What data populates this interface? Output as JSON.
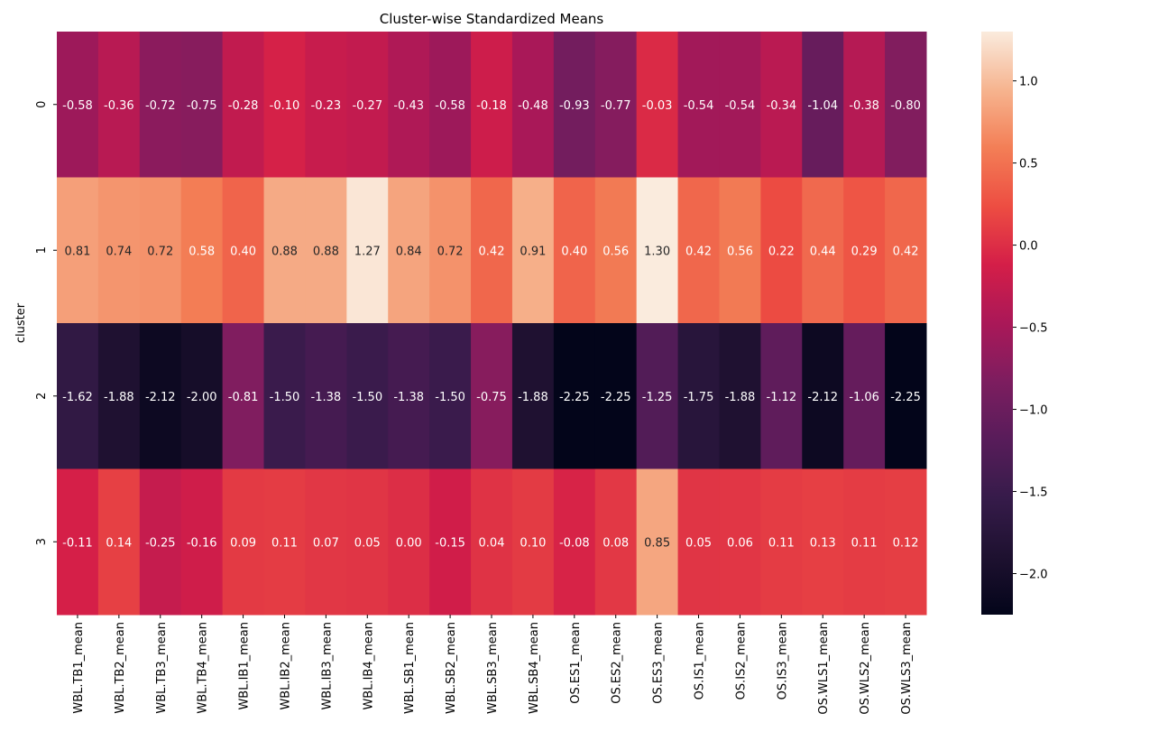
{
  "chart_data": {
    "type": "heatmap",
    "title": "Cluster-wise Standardized Means",
    "xlabel": "",
    "ylabel": "cluster",
    "x": [
      "WBL.TB1_mean",
      "WBL.TB2_mean",
      "WBL.TB3_mean",
      "WBL.TB4_mean",
      "WBL.IB1_mean",
      "WBL.IB2_mean",
      "WBL.IB3_mean",
      "WBL.IB4_mean",
      "WBL.SB1_mean",
      "WBL.SB2_mean",
      "WBL.SB3_mean",
      "WBL.SB4_mean",
      "OS.ES1_mean",
      "OS.ES2_mean",
      "OS.ES3_mean",
      "OS.IS1_mean",
      "OS.IS2_mean",
      "OS.IS3_mean",
      "OS.WLS1_mean",
      "OS.WLS2_mean",
      "OS.WLS3_mean"
    ],
    "y": [
      "0",
      "1",
      "2",
      "3"
    ],
    "values": [
      [
        -0.58,
        -0.36,
        -0.72,
        -0.75,
        -0.28,
        -0.1,
        -0.23,
        -0.27,
        -0.43,
        -0.58,
        -0.18,
        -0.48,
        -0.93,
        -0.77,
        -0.03,
        -0.54,
        -0.54,
        -0.34,
        -1.04,
        -0.38,
        -0.8
      ],
      [
        0.81,
        0.74,
        0.72,
        0.58,
        0.4,
        0.88,
        0.88,
        1.27,
        0.84,
        0.72,
        0.42,
        0.91,
        0.4,
        0.56,
        1.3,
        0.42,
        0.56,
        0.22,
        0.44,
        0.29,
        0.42
      ],
      [
        -1.62,
        -1.88,
        -2.12,
        -2.0,
        -0.81,
        -1.5,
        -1.38,
        -1.5,
        -1.38,
        -1.5,
        -0.75,
        -1.88,
        -2.25,
        -2.25,
        -1.25,
        -1.75,
        -1.88,
        -1.12,
        -2.12,
        -1.06,
        -2.25
      ],
      [
        -0.11,
        0.14,
        -0.25,
        -0.16,
        0.09,
        0.11,
        0.07,
        0.05,
        0.0,
        -0.15,
        0.04,
        0.1,
        -0.08,
        0.08,
        0.85,
        0.05,
        0.06,
        0.11,
        0.13,
        0.11,
        0.12
      ]
    ],
    "annotation_format": "0.00",
    "colormap": "rocket",
    "colorbar": {
      "range": [
        -2.25,
        1.3
      ],
      "ticks": [
        1.0,
        0.5,
        0.0,
        -0.5,
        -1.0,
        -1.5,
        -2.0
      ],
      "tick_labels": [
        "1.0",
        "0.5",
        "0.0",
        "−0.5",
        "−1.0",
        "−1.5",
        "−2.0"
      ],
      "placement": "right"
    },
    "grid": false
  }
}
